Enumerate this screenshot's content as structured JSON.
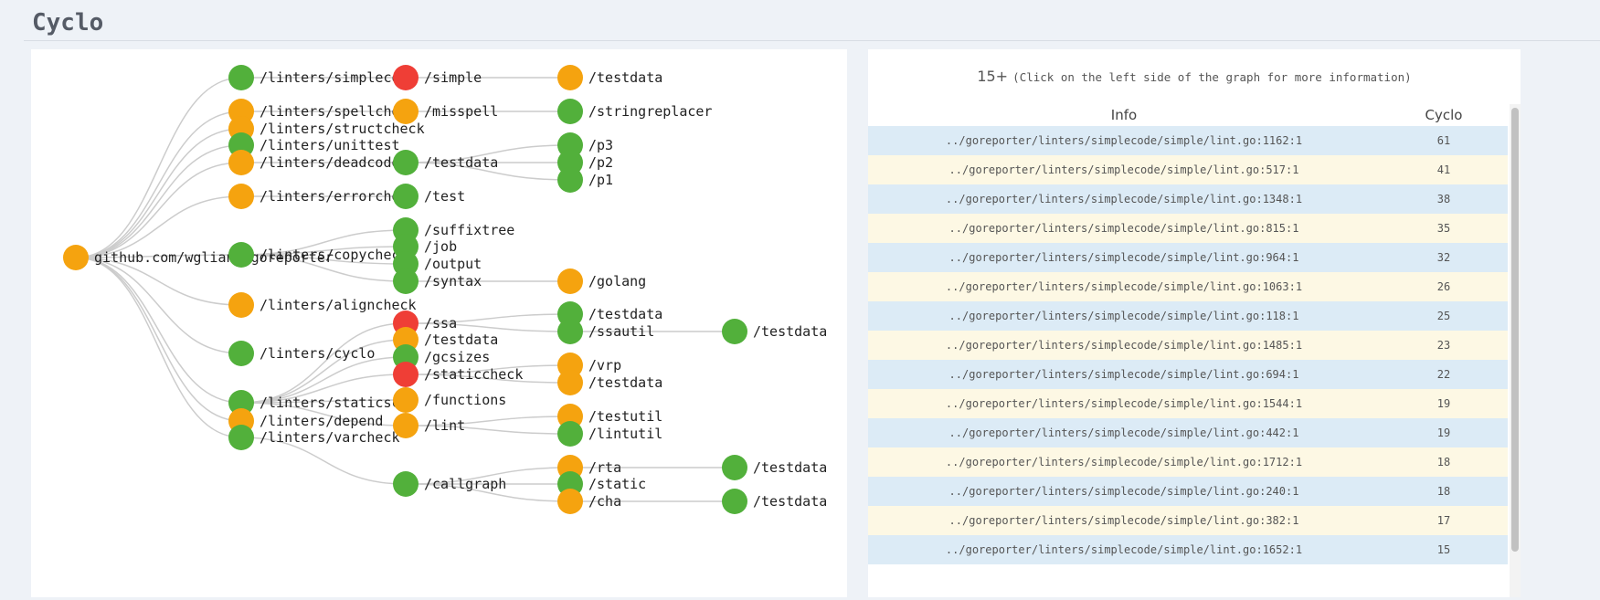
{
  "page": {
    "title": "Cyclo"
  },
  "colors": {
    "green": "#52b03b",
    "orange": "#f5a30f",
    "red": "#ef3e36",
    "link": "#cccccc"
  },
  "graph": {
    "nodes": [
      {
        "id": "root",
        "label": "github.com/wgliang/goreporter",
        "color": "orange"
      },
      {
        "id": "simplecode",
        "label": "/linters/simplecode",
        "color": "green"
      },
      {
        "id": "spellcheck",
        "label": "/linters/spellcheck",
        "color": "orange"
      },
      {
        "id": "structcheck",
        "label": "/linters/structcheck",
        "color": "orange"
      },
      {
        "id": "unittest",
        "label": "/linters/unittest",
        "color": "green"
      },
      {
        "id": "deadcode",
        "label": "/linters/deadcode",
        "color": "orange"
      },
      {
        "id": "errorcheck",
        "label": "/linters/errorcheck",
        "color": "orange"
      },
      {
        "id": "copycheck",
        "label": "/linters/copycheck",
        "color": "green"
      },
      {
        "id": "aligncheck",
        "label": "/linters/aligncheck",
        "color": "orange"
      },
      {
        "id": "cyclo",
        "label": "/linters/cyclo",
        "color": "green"
      },
      {
        "id": "staticscan",
        "label": "/linters/staticscan",
        "color": "green"
      },
      {
        "id": "depend",
        "label": "/linters/depend",
        "color": "orange"
      },
      {
        "id": "varcheck",
        "label": "/linters/varcheck",
        "color": "green"
      },
      {
        "id": "simple",
        "label": "/simple",
        "color": "red"
      },
      {
        "id": "misspell",
        "label": "/misspell",
        "color": "orange"
      },
      {
        "id": "testdata_dc",
        "label": "/testdata",
        "color": "green"
      },
      {
        "id": "test",
        "label": "/test",
        "color": "green"
      },
      {
        "id": "suffixtree",
        "label": "/suffixtree",
        "color": "green"
      },
      {
        "id": "job",
        "label": "/job",
        "color": "green"
      },
      {
        "id": "output",
        "label": "/output",
        "color": "green"
      },
      {
        "id": "syntax",
        "label": "/syntax",
        "color": "green"
      },
      {
        "id": "ssa",
        "label": "/ssa",
        "color": "red"
      },
      {
        "id": "testdata_ss",
        "label": "/testdata",
        "color": "orange"
      },
      {
        "id": "gcsizes",
        "label": "/gcsizes",
        "color": "green"
      },
      {
        "id": "staticcheck",
        "label": "/staticcheck",
        "color": "red"
      },
      {
        "id": "functions",
        "label": "/functions",
        "color": "orange"
      },
      {
        "id": "lint",
        "label": "/lint",
        "color": "orange"
      },
      {
        "id": "callgraph",
        "label": "/callgraph",
        "color": "green"
      },
      {
        "id": "testdata_simple",
        "label": "/testdata",
        "color": "orange"
      },
      {
        "id": "stringreplacer",
        "label": "/stringreplacer",
        "color": "green"
      },
      {
        "id": "p3",
        "label": "/p3",
        "color": "green"
      },
      {
        "id": "p2",
        "label": "/p2",
        "color": "green"
      },
      {
        "id": "p1",
        "label": "/p1",
        "color": "green"
      },
      {
        "id": "golang",
        "label": "/golang",
        "color": "orange"
      },
      {
        "id": "testdata_ssa",
        "label": "/testdata",
        "color": "green"
      },
      {
        "id": "ssautil",
        "label": "/ssautil",
        "color": "green"
      },
      {
        "id": "vrp",
        "label": "/vrp",
        "color": "orange"
      },
      {
        "id": "testdata_sc",
        "label": "/testdata",
        "color": "orange"
      },
      {
        "id": "testutil",
        "label": "/testutil",
        "color": "orange"
      },
      {
        "id": "lintutil",
        "label": "/lintutil",
        "color": "green"
      },
      {
        "id": "rta",
        "label": "/rta",
        "color": "orange"
      },
      {
        "id": "static",
        "label": "/static",
        "color": "green"
      },
      {
        "id": "cha",
        "label": "/cha",
        "color": "orange"
      },
      {
        "id": "testdata_ssautil",
        "label": "/testdata",
        "color": "green"
      },
      {
        "id": "testdata_rta",
        "label": "/testdata",
        "color": "green"
      },
      {
        "id": "testdata_cha",
        "label": "/testdata",
        "color": "green"
      }
    ],
    "links": [
      [
        "root",
        "simplecode"
      ],
      [
        "root",
        "spellcheck"
      ],
      [
        "root",
        "structcheck"
      ],
      [
        "root",
        "unittest"
      ],
      [
        "root",
        "deadcode"
      ],
      [
        "root",
        "errorcheck"
      ],
      [
        "root",
        "copycheck"
      ],
      [
        "root",
        "aligncheck"
      ],
      [
        "root",
        "cyclo"
      ],
      [
        "root",
        "staticscan"
      ],
      [
        "root",
        "depend"
      ],
      [
        "root",
        "varcheck"
      ],
      [
        "simplecode",
        "simple"
      ],
      [
        "spellcheck",
        "misspell"
      ],
      [
        "deadcode",
        "testdata_dc"
      ],
      [
        "errorcheck",
        "test"
      ],
      [
        "copycheck",
        "suffixtree"
      ],
      [
        "copycheck",
        "job"
      ],
      [
        "copycheck",
        "output"
      ],
      [
        "copycheck",
        "syntax"
      ],
      [
        "staticscan",
        "ssa"
      ],
      [
        "staticscan",
        "testdata_ss"
      ],
      [
        "staticscan",
        "gcsizes"
      ],
      [
        "staticscan",
        "staticcheck"
      ],
      [
        "staticscan",
        "functions"
      ],
      [
        "staticscan",
        "lint"
      ],
      [
        "varcheck",
        "callgraph"
      ],
      [
        "simple",
        "testdata_simple"
      ],
      [
        "misspell",
        "stringreplacer"
      ],
      [
        "testdata_dc",
        "p3"
      ],
      [
        "testdata_dc",
        "p2"
      ],
      [
        "testdata_dc",
        "p1"
      ],
      [
        "syntax",
        "golang"
      ],
      [
        "ssa",
        "testdata_ssa"
      ],
      [
        "ssa",
        "ssautil"
      ],
      [
        "staticcheck",
        "vrp"
      ],
      [
        "staticcheck",
        "testdata_sc"
      ],
      [
        "lint",
        "testutil"
      ],
      [
        "lint",
        "lintutil"
      ],
      [
        "callgraph",
        "rta"
      ],
      [
        "callgraph",
        "static"
      ],
      [
        "callgraph",
        "cha"
      ],
      [
        "ssautil",
        "testdata_ssautil"
      ],
      [
        "rta",
        "testdata_rta"
      ],
      [
        "cha",
        "testdata_cha"
      ]
    ]
  },
  "summary": {
    "count": "15+",
    "hint": "(Click on the left side of the graph for more information)"
  },
  "table": {
    "headers": {
      "info": "Info",
      "cyclo": "Cyclo"
    },
    "rows": [
      {
        "info": "../goreporter/linters/simplecode/simple/lint.go:1162:1",
        "cyclo": "61"
      },
      {
        "info": "../goreporter/linters/simplecode/simple/lint.go:517:1",
        "cyclo": "41"
      },
      {
        "info": "../goreporter/linters/simplecode/simple/lint.go:1348:1",
        "cyclo": "38"
      },
      {
        "info": "../goreporter/linters/simplecode/simple/lint.go:815:1",
        "cyclo": "35"
      },
      {
        "info": "../goreporter/linters/simplecode/simple/lint.go:964:1",
        "cyclo": "32"
      },
      {
        "info": "../goreporter/linters/simplecode/simple/lint.go:1063:1",
        "cyclo": "26"
      },
      {
        "info": "../goreporter/linters/simplecode/simple/lint.go:118:1",
        "cyclo": "25"
      },
      {
        "info": "../goreporter/linters/simplecode/simple/lint.go:1485:1",
        "cyclo": "23"
      },
      {
        "info": "../goreporter/linters/simplecode/simple/lint.go:694:1",
        "cyclo": "22"
      },
      {
        "info": "../goreporter/linters/simplecode/simple/lint.go:1544:1",
        "cyclo": "19"
      },
      {
        "info": "../goreporter/linters/simplecode/simple/lint.go:442:1",
        "cyclo": "19"
      },
      {
        "info": "../goreporter/linters/simplecode/simple/lint.go:1712:1",
        "cyclo": "18"
      },
      {
        "info": "../goreporter/linters/simplecode/simple/lint.go:240:1",
        "cyclo": "18"
      },
      {
        "info": "../goreporter/linters/simplecode/simple/lint.go:382:1",
        "cyclo": "17"
      },
      {
        "info": "../goreporter/linters/simplecode/simple/lint.go:1652:1",
        "cyclo": "15"
      }
    ]
  }
}
